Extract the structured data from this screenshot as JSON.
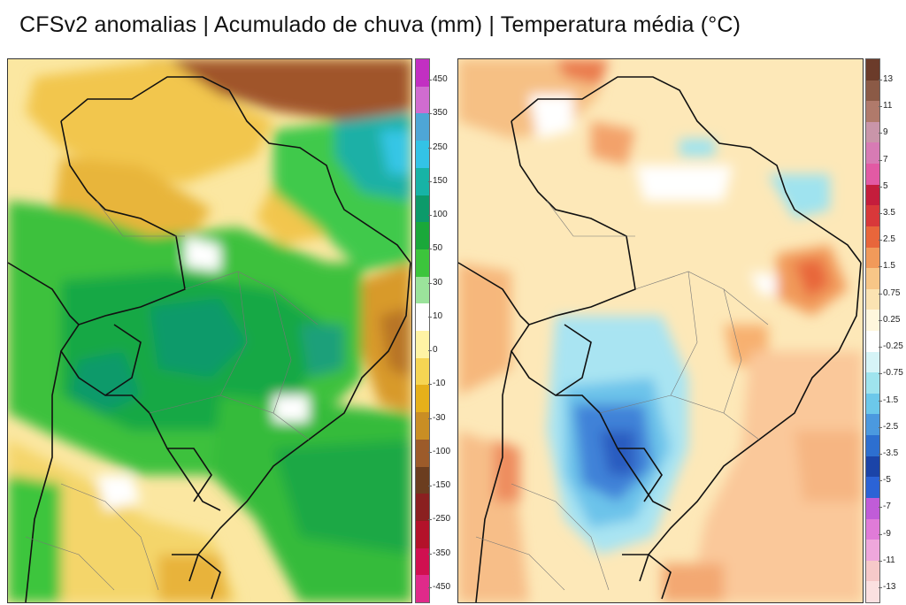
{
  "title": "CFSv2 anomalias | Acumulado de chuva (mm) | Temperatura média (°C)",
  "rain_legend": {
    "labels": [
      "450",
      "350",
      "250",
      "150",
      "100",
      "50",
      "30",
      "10",
      "0",
      "-10",
      "-30",
      "-100",
      "-150",
      "-250",
      "-350",
      "-450"
    ],
    "colors": [
      "#c22fc2",
      "#d06cd0",
      "#4ea6d6",
      "#33c3e6",
      "#17b3a6",
      "#0c9a6a",
      "#1aa83a",
      "#3cc53c",
      "#9be39b",
      "#ffffff",
      "#fff3a4",
      "#f6d553",
      "#e6b01a",
      "#c98e24",
      "#9c5b2a",
      "#6b3d1f",
      "#8a2020",
      "#b3122a",
      "#d01050",
      "#e02a8a"
    ]
  },
  "temp_legend": {
    "labels": [
      "13",
      "11",
      "9",
      "7",
      "5",
      "3.5",
      "2.5",
      "1.5",
      "0.75",
      "0.25",
      "-0.25",
      "-0.75",
      "-1.5",
      "-2.5",
      "-3.5",
      "-5",
      "-7",
      "-9",
      "-11",
      "-13"
    ],
    "colors": [
      "#6b3b2a",
      "#8b5a46",
      "#b07a6b",
      "#c995a9",
      "#d77bb4",
      "#e25aa4",
      "#c41d3c",
      "#d8383a",
      "#e8663b",
      "#f19a5a",
      "#f7c687",
      "#fbe3b2",
      "#fff7dd",
      "#ffffff",
      "#d6f4f7",
      "#9fe4ee",
      "#6cc8ea",
      "#4b99df",
      "#2d6fd0",
      "#1b44a8",
      "#2b63d6",
      "#c05cd8",
      "#e07bd8",
      "#efa7dc",
      "#f6c9c9",
      "#fbe0e0"
    ]
  },
  "icons": {
    "rain_map": "precipitation-anomaly-map",
    "temp_map": "temperature-anomaly-map"
  }
}
